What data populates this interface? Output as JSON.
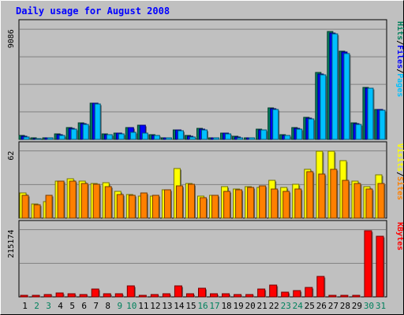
{
  "chart_data": {
    "type": "bar",
    "title": "Daily usage for August 2008",
    "days": [
      "1",
      "2",
      "3",
      "4",
      "5",
      "6",
      "7",
      "8",
      "9",
      "10",
      "11",
      "12",
      "13",
      "14",
      "15",
      "16",
      "17",
      "18",
      "19",
      "20",
      "21",
      "22",
      "23",
      "24",
      "25",
      "26",
      "27",
      "28",
      "29",
      "30",
      "31"
    ],
    "weekend_days": [
      "2",
      "3",
      "9",
      "10",
      "16",
      "17",
      "23",
      "24",
      "30",
      "31"
    ],
    "panels": [
      {
        "name": "hits-panel",
        "max_label": "9086",
        "ymax": 9086,
        "legend": [
          {
            "label": "Hits",
            "color": "#00805c"
          },
          {
            "label": "/",
            "color": "#000000"
          },
          {
            "label": "Files",
            "color": "#0000ff"
          },
          {
            "label": "/",
            "color": "#000000"
          },
          {
            "label": "Pages",
            "color": "#00c0ff"
          }
        ],
        "series": [
          {
            "name": "Hits",
            "color": "#00805c",
            "values": [
              300,
              100,
              150,
              450,
              950,
              1350,
              3000,
              450,
              550,
              1000,
              1200,
              400,
              150,
              800,
              300,
              900,
              150,
              550,
              250,
              150,
              850,
              2600,
              400,
              950,
              1800,
              5500,
              8900,
              7300,
              1350,
              4300,
              2500
            ]
          },
          {
            "name": "Files",
            "color": "#0000ff",
            "values": [
              250,
              80,
              120,
              380,
              900,
              1300,
              3000,
              420,
              500,
              950,
              1200,
              350,
              120,
              750,
              250,
              850,
              120,
              500,
              200,
              120,
              800,
              2550,
              350,
              900,
              1750,
              5400,
              8800,
              7200,
              1300,
              4250,
              2450
            ]
          },
          {
            "name": "Pages",
            "color": "#00c0ff",
            "values": [
              200,
              60,
              100,
              300,
              850,
              1250,
              2950,
              400,
              450,
              600,
              500,
              300,
              100,
              700,
              200,
              800,
              100,
              450,
              150,
              100,
              750,
              2500,
              300,
              850,
              1700,
              5300,
              8700,
              7100,
              1250,
              4200,
              2400
            ]
          }
        ]
      },
      {
        "name": "visits-panel",
        "max_label": "62",
        "ymax": 62,
        "legend": [
          {
            "label": "Visits",
            "color": "#ffff00"
          },
          {
            "label": "/",
            "color": "#000000"
          },
          {
            "label": "Sites",
            "color": "#ff8000"
          }
        ],
        "series": [
          {
            "name": "Visits",
            "color": "#ffff00",
            "values": [
              23,
              13,
              15,
              34,
              36,
              34,
              32,
              33,
              25,
              22,
              20,
              20,
              26,
              46,
              32,
              20,
              21,
              29,
              27,
              29,
              28,
              35,
              28,
              31,
              45,
              62,
              62,
              53,
              34,
              29,
              40
            ]
          },
          {
            "name": "Sites",
            "color": "#ff8000",
            "values": [
              21,
              12,
              21,
              34,
              34,
              32,
              31,
              29,
              22,
              21,
              23,
              21,
              26,
              30,
              31,
              19,
              21,
              25,
              26,
              28,
              30,
              27,
              25,
              27,
              43,
              41,
              45,
              35,
              32,
              27,
              32
            ]
          }
        ]
      },
      {
        "name": "kbytes-panel",
        "max_label": "215174",
        "ymax": 215174,
        "legend": [
          {
            "label": "KBytes",
            "color": "#ff0000"
          }
        ],
        "series": [
          {
            "name": "KBytes",
            "color": "#ff0000",
            "values": [
              6000,
              4000,
              7000,
              12000,
              9000,
              8000,
              26000,
              9000,
              9000,
              36000,
              6000,
              7000,
              11000,
              36000,
              11000,
              27000,
              9000,
              9000,
              7000,
              8000,
              24000,
              39000,
              16000,
              19000,
              29000,
              65000,
              4000,
              5000,
              5000,
              212000,
              194000
            ]
          }
        ]
      }
    ]
  }
}
